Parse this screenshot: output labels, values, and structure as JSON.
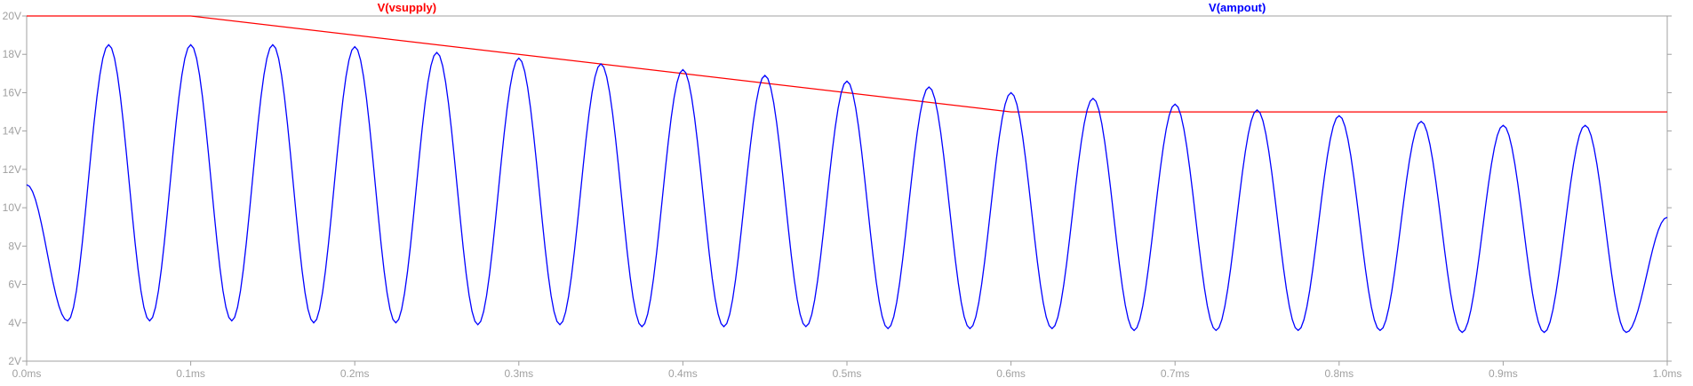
{
  "chart_data": {
    "type": "line",
    "title": "",
    "xlabel": "",
    "ylabel": "",
    "xlim": [
      0.0,
      1.0
    ],
    "ylim": [
      2,
      20
    ],
    "grid": false,
    "background": "#ffffff",
    "axis_color": "#a0a0a0",
    "tick_label_color": "#a0a0a0",
    "x_ticks": [
      0.0,
      0.1,
      0.2,
      0.3,
      0.4,
      0.5,
      0.6,
      0.7,
      0.8,
      0.9,
      1.0
    ],
    "x_tick_labels": [
      "0.0ms",
      "0.1ms",
      "0.2ms",
      "0.3ms",
      "0.4ms",
      "0.5ms",
      "0.6ms",
      "0.7ms",
      "0.8ms",
      "0.9ms",
      "1.0ms"
    ],
    "y_ticks": [
      2,
      4,
      6,
      8,
      10,
      12,
      14,
      16,
      18,
      20
    ],
    "y_tick_labels": [
      "2V",
      "4V",
      "6V",
      "8V",
      "10V",
      "12V",
      "14V",
      "16V",
      "18V",
      "20V"
    ],
    "series": [
      {
        "name": "V(vsupply)",
        "color": "#ff0000",
        "x": [
          0.0,
          0.1,
          0.6,
          1.0
        ],
        "y": [
          20,
          20,
          15,
          15
        ]
      },
      {
        "name": "V(ampout)",
        "color": "#0000ff",
        "x": [
          0.0,
          0.025,
          0.05,
          0.075,
          0.1,
          0.125,
          0.15,
          0.175,
          0.2,
          0.225,
          0.25,
          0.275,
          0.3,
          0.325,
          0.35,
          0.375,
          0.4,
          0.425,
          0.45,
          0.475,
          0.5,
          0.525,
          0.55,
          0.575,
          0.6,
          0.625,
          0.65,
          0.675,
          0.7,
          0.725,
          0.75,
          0.775,
          0.8,
          0.825,
          0.85,
          0.875,
          0.9,
          0.925,
          0.95,
          0.975,
          1.0
        ],
        "y": [
          11.2,
          4.1,
          18.5,
          4.1,
          18.5,
          4.1,
          18.5,
          4.0,
          18.4,
          4.0,
          18.1,
          3.9,
          17.8,
          3.9,
          17.5,
          3.8,
          17.2,
          3.8,
          16.9,
          3.8,
          16.6,
          3.7,
          16.3,
          3.7,
          16.0,
          3.7,
          15.7,
          3.6,
          15.4,
          3.6,
          15.1,
          3.6,
          14.8,
          3.6,
          14.5,
          3.5,
          14.3,
          3.5,
          14.3,
          3.5,
          9.5
        ]
      }
    ]
  }
}
